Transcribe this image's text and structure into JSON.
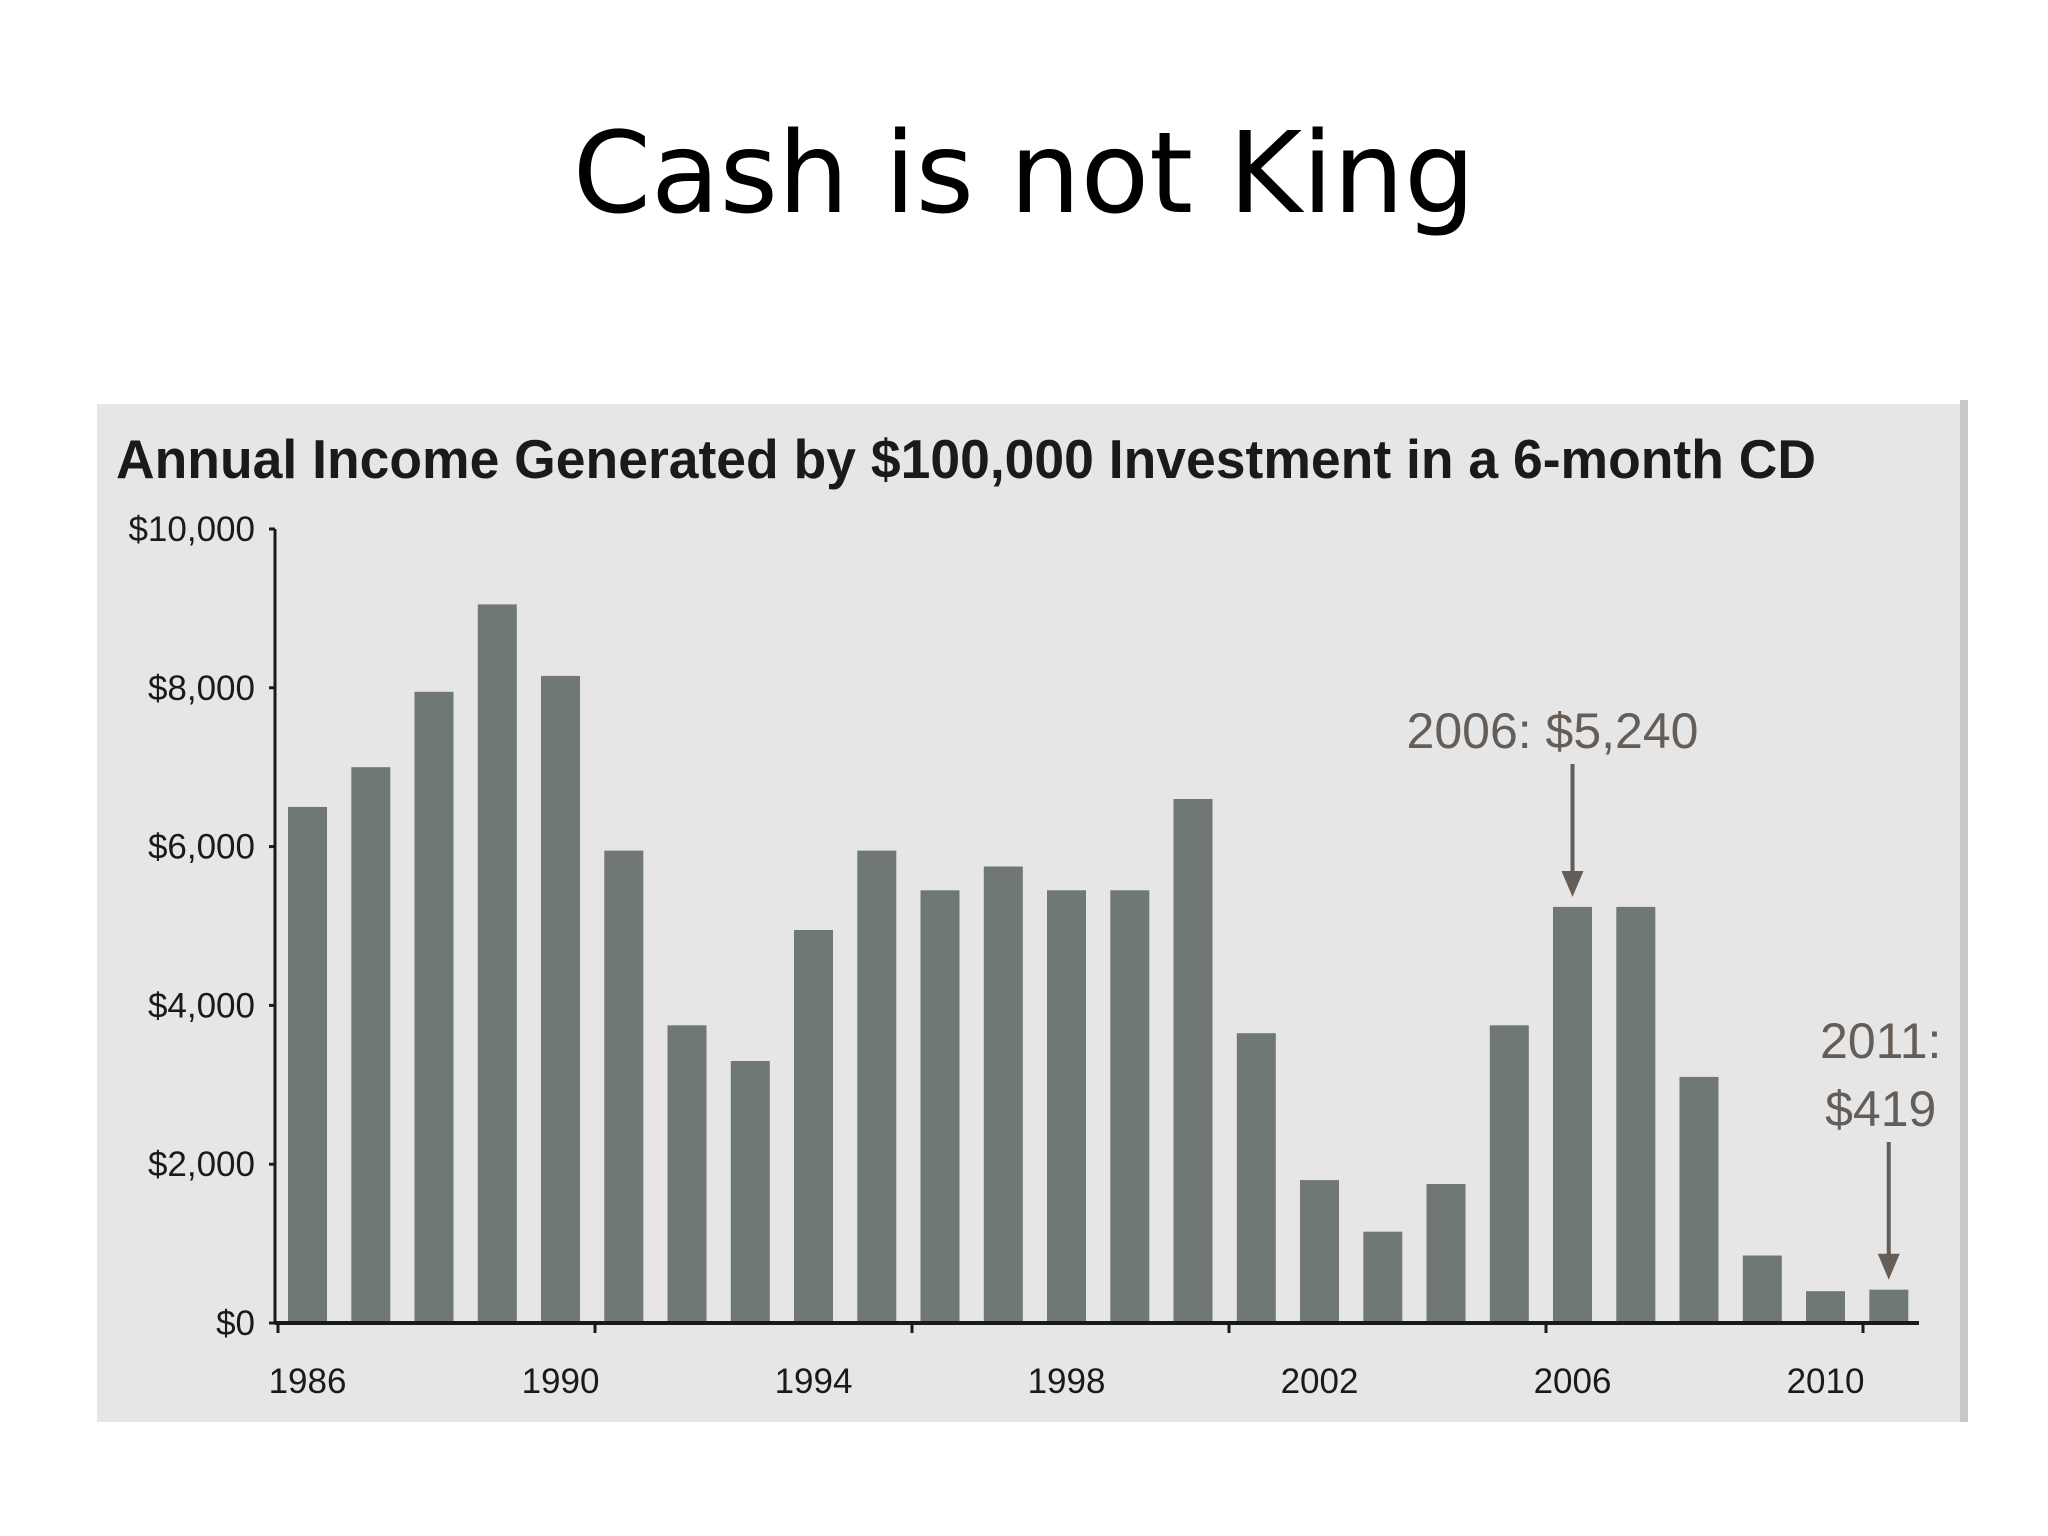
{
  "slide": {
    "title": "Cash is not King"
  },
  "colors": {
    "bar": "#6f7874",
    "annotation": "#655d58",
    "axis": "#1a1a1a",
    "panel": "#e6e6e6"
  },
  "chart_data": {
    "type": "bar",
    "title": "Annual Income Generated by $100,000 Investment in a 6-month CD",
    "xlabel": "",
    "ylabel": "",
    "ylim": [
      0,
      10000
    ],
    "yticks": [
      0,
      2000,
      4000,
      6000,
      8000,
      10000
    ],
    "ytick_labels": [
      "$0",
      "$2,000",
      "$4,000",
      "$6,000",
      "$8,000",
      "$10,000"
    ],
    "xtick_labels": [
      "1986",
      "1990",
      "1994",
      "1998",
      "2002",
      "2006",
      "2010"
    ],
    "categories": [
      "1986",
      "1987",
      "1988",
      "1989",
      "1990",
      "1991",
      "1992",
      "1993",
      "1994",
      "1995",
      "1996",
      "1997",
      "1998",
      "1999",
      "2000",
      "2001",
      "2002",
      "2003",
      "2004",
      "2005",
      "2006",
      "2007",
      "2008",
      "2009",
      "2010",
      "2011"
    ],
    "values": [
      6500,
      7000,
      7950,
      9050,
      8150,
      5950,
      3750,
      3300,
      4950,
      5950,
      5450,
      5750,
      5450,
      5450,
      6600,
      3650,
      1800,
      1150,
      1750,
      3750,
      5240,
      5240,
      3100,
      850,
      400,
      419
    ],
    "grid": false,
    "annotations": [
      {
        "category": "2006",
        "lines": [
          "2006: $5,240"
        ]
      },
      {
        "category": "2011",
        "lines": [
          "2011:",
          "$419"
        ]
      }
    ]
  }
}
